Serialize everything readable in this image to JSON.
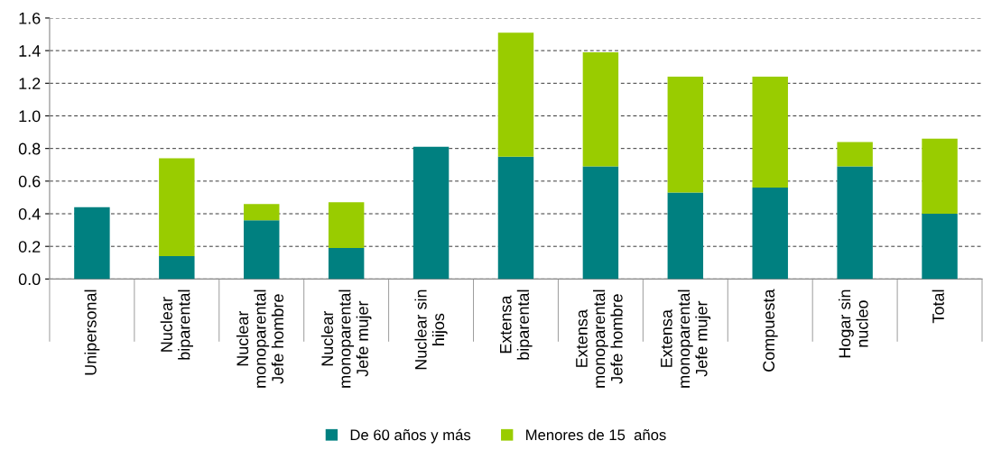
{
  "chart_data": {
    "type": "bar",
    "stacked": true,
    "categories": [
      "Unipersonal",
      "Nuclear\nbiparental",
      "Nuclear\nmonoparental\nJefe hombre",
      "Nuclear\nmonoparental\nJefe mujer",
      "Nuclear sin\nhijos",
      "Extensa\nbiparental",
      "Extensa\nmonoparental\nJefe hombre",
      "Extensa\nmonoparental\nJefe mujer",
      "Compuesta",
      "Hogar sin\nnucleo",
      "Total"
    ],
    "series": [
      {
        "name": "De 60 años y más",
        "color": "#008080",
        "values": [
          0.44,
          0.14,
          0.36,
          0.19,
          0.81,
          0.75,
          0.69,
          0.53,
          0.56,
          0.69,
          0.4
        ]
      },
      {
        "name": "Menores de 15  años",
        "color": "#99cc00",
        "values": [
          null,
          0.6,
          0.1,
          0.28,
          null,
          0.76,
          0.7,
          0.71,
          0.68,
          0.15,
          0.46
        ]
      }
    ],
    "ylim": [
      0,
      1.6
    ],
    "yticks": [
      {
        "value": 0,
        "label": "0.0"
      },
      {
        "value": 0.2,
        "label": "0.2"
      },
      {
        "value": 0.4,
        "label": "0.4"
      },
      {
        "value": 0.6,
        "label": "0.6"
      },
      {
        "value": 0.8,
        "label": "0.8"
      },
      {
        "value": 1.0,
        "label": "1.0"
      },
      {
        "value": 1.2,
        "label": "1.2"
      },
      {
        "value": 1.4,
        "label": "1.4"
      },
      {
        "value": 1.6,
        "label": "1.6"
      }
    ],
    "grid": "y",
    "legend": "bottom"
  }
}
